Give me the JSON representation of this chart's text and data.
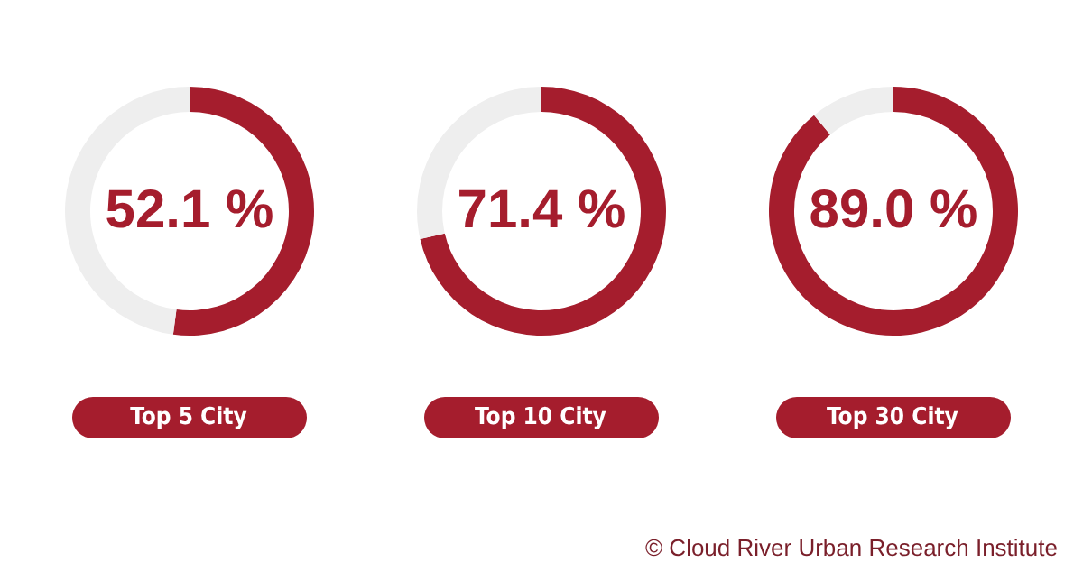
{
  "chart_data": [
    {
      "type": "donut",
      "title": "Top 5 City",
      "values": [
        52.1,
        47.9
      ],
      "colors": [
        "#a51d2d",
        "#eeeeee"
      ],
      "value_labels": [
        "52.1 %",
        null
      ]
    },
    {
      "type": "donut",
      "title": "Top 10 City",
      "values": [
        71.4,
        28.6
      ],
      "colors": [
        "#a51d2d",
        "#eeeeee"
      ],
      "value_labels": [
        "71.4 %",
        null
      ]
    },
    {
      "type": "donut",
      "title": "Top 30 City",
      "values": [
        89.0,
        11.0
      ],
      "colors": [
        "#a51d2d",
        "#eeeeee"
      ],
      "value_labels": [
        "89.0 %",
        null
      ],
      "annotations": [
        "© Cloud River Urban Research Institute"
      ]
    }
  ]
}
